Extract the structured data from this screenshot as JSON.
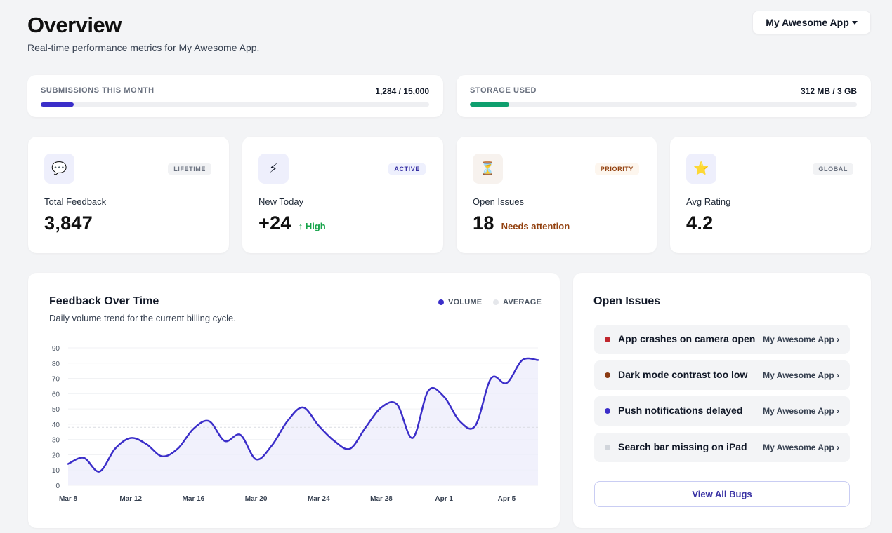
{
  "header": {
    "title": "Overview",
    "subtitle": "Real-time performance metrics for My Awesome App.",
    "app_selector": "My Awesome App"
  },
  "usage": [
    {
      "label": "SUBMISSIONS THIS MONTH",
      "value": "1,284 / 15,000",
      "fraction": 0.0856,
      "color": "#3b2ec9"
    },
    {
      "label": "STORAGE USED",
      "value": "312 MB / 3 GB",
      "fraction": 0.1016,
      "color": "#0e9f6e"
    }
  ],
  "stats": [
    {
      "icon": "speech-bubble-icon",
      "glyph": "💬",
      "icon_bg": "#eeeffc",
      "badge": "LIFETIME",
      "badge_color": "#6b7280",
      "badge_bg": "#f1f2f4",
      "label": "Total Feedback",
      "value": "3,847",
      "note": "",
      "note_color": "#111827"
    },
    {
      "icon": "lightning-icon",
      "glyph": "⚡",
      "icon_bg": "#eeeffc",
      "badge": "ACTIVE",
      "badge_color": "#3730a3",
      "badge_bg": "#eef0fd",
      "label": "New Today",
      "value": "+24",
      "note": "↑ High",
      "note_color": "#16a34a"
    },
    {
      "icon": "hourglass-icon",
      "glyph": "⏳",
      "icon_bg": "#f7f2ee",
      "badge": "PRIORITY",
      "badge_color": "#92400e",
      "badge_bg": "#fdf6ee",
      "label": "Open Issues",
      "value": "18",
      "note": "Needs attention",
      "note_color": "#92400e"
    },
    {
      "icon": "star-icon",
      "glyph": "⭐",
      "icon_bg": "#eeeffc",
      "badge": "GLOBAL",
      "badge_color": "#6b7280",
      "badge_bg": "#f1f2f4",
      "label": "Avg Rating",
      "value": "4.2",
      "note": "",
      "note_color": "#111827"
    }
  ],
  "feedback_chart": {
    "title": "Feedback Over Time",
    "subtitle": "Daily volume trend for the current billing cycle.",
    "legend": [
      {
        "label": "VOLUME",
        "color": "#3b2ec9"
      },
      {
        "label": "AVERAGE",
        "color": "#e5e7eb"
      }
    ]
  },
  "chart_data": {
    "type": "area",
    "x": [
      "Mar 8",
      "Mar 9",
      "Mar 10",
      "Mar 11",
      "Mar 12",
      "Mar 13",
      "Mar 14",
      "Mar 15",
      "Mar 16",
      "Mar 17",
      "Mar 18",
      "Mar 19",
      "Mar 20",
      "Mar 21",
      "Mar 22",
      "Mar 23",
      "Mar 24",
      "Mar 25",
      "Mar 26",
      "Mar 27",
      "Mar 28",
      "Mar 29",
      "Mar 30",
      "Mar 31",
      "Apr 1",
      "Apr 2",
      "Apr 3",
      "Apr 4",
      "Apr 5",
      "Apr 6",
      "Apr 7"
    ],
    "x_ticks": [
      "Mar 8",
      "Mar 12",
      "Mar 16",
      "Mar 20",
      "Mar 24",
      "Mar 28",
      "Apr 1",
      "Apr 5"
    ],
    "series": [
      {
        "name": "VOLUME",
        "values": [
          14,
          18,
          9,
          24,
          31,
          27,
          19,
          24,
          37,
          42,
          29,
          33,
          17,
          26,
          42,
          51,
          39,
          29,
          24,
          38,
          51,
          53,
          31,
          62,
          58,
          42,
          39,
          70,
          67,
          82,
          82
        ]
      },
      {
        "name": "AVERAGE",
        "values": [
          38,
          38,
          38,
          38,
          38,
          38,
          38,
          38,
          38,
          38,
          38,
          38,
          38,
          38,
          38,
          38,
          38,
          38,
          38,
          38,
          38,
          38,
          38,
          38,
          38,
          38,
          38,
          38,
          38,
          38,
          38
        ]
      }
    ],
    "y_ticks": [
      0,
      10,
      20,
      30,
      40,
      50,
      60,
      70,
      80,
      90
    ],
    "ylim": [
      0,
      90
    ],
    "grid": true,
    "xlabel": "",
    "ylabel": ""
  },
  "open_issues": {
    "title": "Open Issues",
    "items": [
      {
        "title": "App crashes on camera open",
        "app": "My Awesome App ›",
        "color": "#c0262d"
      },
      {
        "title": "Dark mode contrast too low",
        "app": "My Awesome App ›",
        "color": "#8a3a12"
      },
      {
        "title": "Push notifications delayed",
        "app": "My Awesome App ›",
        "color": "#3b2ec9"
      },
      {
        "title": "Search bar missing on iPad",
        "app": "My Awesome App ›",
        "color": "#d1d5db"
      }
    ],
    "view_all": "View All Bugs"
  }
}
